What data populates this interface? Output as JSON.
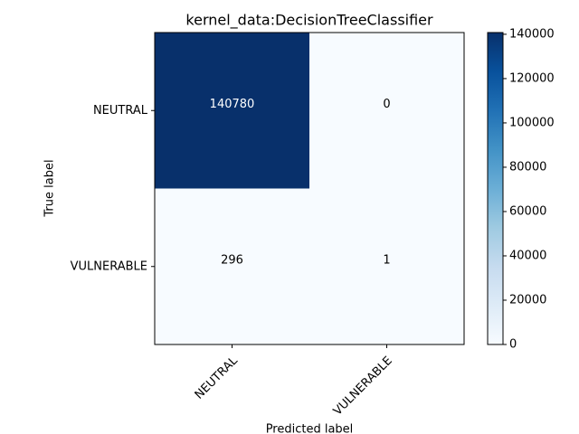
{
  "chart_data": {
    "type": "heatmap",
    "title": "kernel_data:DecisionTreeClassifier",
    "xlabel": "Predicted label",
    "ylabel": "True label",
    "x_categories": [
      "NEUTRAL",
      "VULNERABLE"
    ],
    "y_categories": [
      "NEUTRAL",
      "VULNERABLE"
    ],
    "values": [
      [
        140780,
        0
      ],
      [
        296,
        1
      ]
    ],
    "zlim": [
      0,
      140780
    ],
    "zticks": [
      0,
      20000,
      40000,
      60000,
      80000,
      100000,
      120000,
      140000
    ],
    "colormap": [
      "#f7fbff",
      "#deebf7",
      "#c6dbef",
      "#9ecae1",
      "#6baed6",
      "#4292c6",
      "#2171b5",
      "#08519c",
      "#08306b"
    ]
  }
}
